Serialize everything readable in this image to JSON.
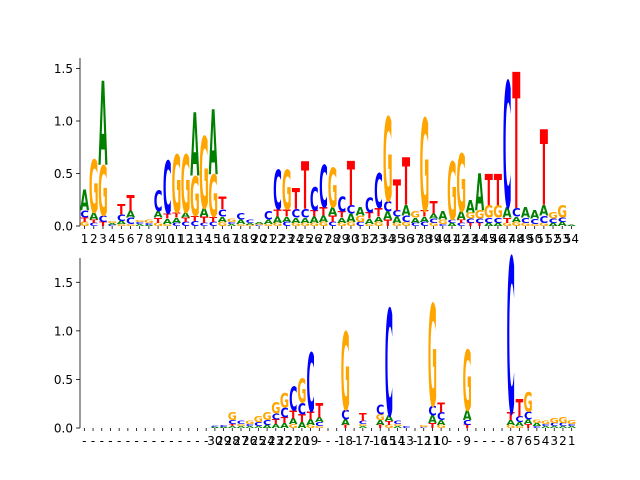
{
  "figure_title": "",
  "colors": {
    "A": "#008000",
    "C": "#0000ff",
    "G": "#ffa500",
    "T": "#ff0000"
  },
  "chart_data": [
    {
      "type": "sequence_logo",
      "name": "top-logo",
      "title": "",
      "xlabel": "",
      "ylabel": "",
      "ylim": [
        0,
        1.6
      ],
      "yticks": [
        0.0,
        0.5,
        1.0,
        1.5
      ],
      "ytick_labels": [
        "0.0",
        "0.5",
        "1.0",
        "1.5"
      ],
      "positions": [
        "1",
        "2",
        "3",
        "4",
        "5",
        "6",
        "7",
        "8",
        "9",
        "10",
        "11",
        "12",
        "13",
        "14",
        "15",
        "16",
        "17",
        "18",
        "19",
        "20",
        "21",
        "22",
        "23",
        "24",
        "25",
        "26",
        "27",
        "28",
        "29",
        "30",
        "31",
        "32",
        "33",
        "34",
        "35",
        "36",
        "37",
        "38",
        "39",
        "40",
        "41",
        "42",
        "43",
        "44",
        "45",
        "46",
        "47",
        "48",
        "49",
        "50",
        "51",
        "52",
        "53",
        "54"
      ],
      "columns": [
        {
          "A": 0.2,
          "C": 0.07,
          "G": 0.04,
          "T": 0.04
        },
        {
          "G": 0.5,
          "A": 0.07,
          "C": 0.03,
          "T": 0.03
        },
        {
          "A": 0.8,
          "G": 0.48,
          "T": 0.04,
          "C": 0.06
        },
        {
          "G": 0.02,
          "A": 0.02,
          "C": 0.01
        },
        {
          "T": 0.1,
          "C": 0.06,
          "A": 0.03,
          "G": 0.02
        },
        {
          "T": 0.15,
          "C": 0.06,
          "A": 0.07,
          "G": 0.02
        },
        {
          "A": 0.02,
          "C": 0.02,
          "G": 0.02
        },
        {
          "G": 0.03,
          "C": 0.02,
          "A": 0.01
        },
        {
          "C": 0.2,
          "A": 0.06,
          "T": 0.05,
          "G": 0.03
        },
        {
          "C": 0.5,
          "T": 0.05,
          "A": 0.05,
          "G": 0.02
        },
        {
          "G": 0.55,
          "T": 0.05,
          "A": 0.05,
          "C": 0.03
        },
        {
          "G": 0.55,
          "A": 0.05,
          "T": 0.04,
          "C": 0.04
        },
        {
          "A": 0.6,
          "G": 0.38,
          "T": 0.05,
          "C": 0.05
        },
        {
          "G": 0.68,
          "A": 0.08,
          "T": 0.06,
          "C": 0.03
        },
        {
          "A": 0.62,
          "G": 0.4,
          "T": 0.05,
          "C": 0.04
        },
        {
          "T": 0.12,
          "C": 0.07,
          "A": 0.05,
          "G": 0.04
        },
        {
          "G": 0.03,
          "A": 0.02,
          "C": 0.02
        },
        {
          "C": 0.06,
          "A": 0.04,
          "G": 0.02
        },
        {
          "C": 0.03,
          "A": 0.02,
          "G": 0.01
        },
        {
          "A": 0.02,
          "G": 0.01,
          "C": 0.01
        },
        {
          "C": 0.08,
          "A": 0.04,
          "G": 0.02
        },
        {
          "C": 0.38,
          "T": 0.07,
          "A": 0.06,
          "G": 0.03
        },
        {
          "G": 0.38,
          "T": 0.07,
          "A": 0.05,
          "C": 0.04
        },
        {
          "T": 0.2,
          "C": 0.08,
          "A": 0.05,
          "G": 0.03
        },
        {
          "T": 0.45,
          "C": 0.08,
          "A": 0.05,
          "G": 0.03
        },
        {
          "C": 0.22,
          "A": 0.06,
          "T": 0.06,
          "G": 0.03
        },
        {
          "C": 0.4,
          "T": 0.08,
          "A": 0.06,
          "G": 0.04
        },
        {
          "G": 0.38,
          "A": 0.08,
          "T": 0.06,
          "C": 0.04
        },
        {
          "C": 0.14,
          "T": 0.06,
          "A": 0.05,
          "G": 0.03
        },
        {
          "T": 0.42,
          "A": 0.08,
          "C": 0.08,
          "G": 0.04
        },
        {
          "A": 0.08,
          "G": 0.06,
          "C": 0.04
        },
        {
          "C": 0.14,
          "T": 0.06,
          "A": 0.05,
          "G": 0.02
        },
        {
          "C": 0.33,
          "T": 0.08,
          "A": 0.05,
          "G": 0.04
        },
        {
          "G": 0.8,
          "C": 0.1,
          "A": 0.08,
          "T": 0.06
        },
        {
          "T": 0.3,
          "C": 0.06,
          "A": 0.06,
          "G": 0.03
        },
        {
          "T": 0.45,
          "A": 0.1,
          "C": 0.06,
          "G": 0.04
        },
        {
          "G": 0.06,
          "A": 0.05,
          "C": 0.03
        },
        {
          "G": 0.88,
          "T": 0.06,
          "A": 0.05,
          "C": 0.04
        },
        {
          "T": 0.12,
          "A": 0.05,
          "C": 0.04,
          "G": 0.03
        },
        {
          "A": 0.08,
          "G": 0.04,
          "C": 0.02
        },
        {
          "G": 0.55,
          "A": 0.03,
          "C": 0.03
        },
        {
          "G": 0.55,
          "A": 0.08,
          "T": 0.03,
          "C": 0.03
        },
        {
          "A": 0.12,
          "G": 0.06,
          "C": 0.04,
          "T": 0.03
        },
        {
          "A": 0.35,
          "G": 0.08,
          "C": 0.04,
          "T": 0.03
        },
        {
          "T": 0.3,
          "G": 0.12,
          "C": 0.05,
          "A": 0.03
        },
        {
          "T": 0.3,
          "G": 0.12,
          "C": 0.05,
          "A": 0.03
        },
        {
          "C": 1.2,
          "A": 0.1,
          "T": 0.05,
          "G": 0.03
        },
        {
          "T": 1.3,
          "C": 0.08,
          "A": 0.05,
          "G": 0.04
        },
        {
          "A": 0.1,
          "C": 0.05,
          "G": 0.03
        },
        {
          "A": 0.08,
          "C": 0.05,
          "G": 0.02
        },
        {
          "T": 0.72,
          "A": 0.1,
          "C": 0.07,
          "G": 0.03
        },
        {
          "G": 0.06,
          "C": 0.04,
          "A": 0.03
        },
        {
          "G": 0.12,
          "C": 0.04,
          "A": 0.04
        },
        {
          "A": 0.01
        }
      ]
    },
    {
      "type": "sequence_logo",
      "name": "bottom-logo",
      "title": "",
      "xlabel": "",
      "ylabel": "",
      "ylim": [
        0,
        1.75
      ],
      "yticks": [
        0.0,
        0.5,
        1.0,
        1.5
      ],
      "ytick_labels": [
        "0.0",
        "0.5",
        "1.0",
        "1.5"
      ],
      "positions": [
        "-",
        "-",
        "-",
        "-",
        "-",
        "-",
        "-",
        "-",
        "-",
        "-",
        "-",
        "-",
        "-",
        "-",
        "-",
        "30",
        "29",
        "28",
        "27",
        "26",
        "25",
        "24",
        "23",
        "22",
        "21",
        "20",
        "19",
        "-",
        "-",
        "-",
        "18",
        "-",
        "17",
        "-",
        "16",
        "15",
        "14",
        "13",
        "-",
        "12",
        "11",
        "10",
        "-",
        "-",
        "9",
        "-",
        "-",
        "-",
        "-",
        "8",
        "7",
        "6",
        "5",
        "4",
        "3",
        "2",
        "1"
      ],
      "columns": [
        {},
        {},
        {},
        {},
        {},
        {},
        {},
        {},
        {},
        {},
        {},
        {},
        {},
        {},
        {},
        {
          "C": 0.01,
          "A": 0.01
        },
        {
          "C": 0.02,
          "A": 0.01
        },
        {
          "G": 0.08,
          "C": 0.04,
          "A": 0.02,
          "T": 0.02
        },
        {
          "C": 0.03,
          "A": 0.02,
          "G": 0.02
        },
        {
          "G": 0.03,
          "C": 0.02,
          "A": 0.02
        },
        {
          "G": 0.06,
          "C": 0.04,
          "A": 0.02
        },
        {
          "G": 0.08,
          "C": 0.05,
          "A": 0.03
        },
        {
          "G": 0.12,
          "C": 0.06,
          "T": 0.05,
          "A": 0.04
        },
        {
          "G": 0.15,
          "C": 0.1,
          "T": 0.06,
          "A": 0.05
        },
        {
          "C": 0.25,
          "T": 0.08,
          "A": 0.06,
          "G": 0.04
        },
        {
          "G": 0.25,
          "C": 0.12,
          "T": 0.08,
          "A": 0.06
        },
        {
          "C": 0.6,
          "T": 0.08,
          "A": 0.06,
          "G": 0.03
        },
        {
          "T": 0.15,
          "A": 0.05,
          "C": 0.04,
          "G": 0.02
        },
        {},
        {},
        {
          "G": 0.8,
          "C": 0.1,
          "A": 0.06,
          "T": 0.03
        },
        {},
        {
          "T": 0.08,
          "C": 0.03,
          "G": 0.02,
          "A": 0.02
        },
        {},
        {
          "C": 0.1,
          "G": 0.06,
          "A": 0.05,
          "T": 0.03
        },
        {
          "C": 1.1,
          "A": 0.06,
          "T": 0.04,
          "G": 0.03
        },
        {
          "C": 0.03,
          "G": 0.02,
          "A": 0.02
        },
        {
          "C": 0.02
        },
        {},
        {
          "G": 0.02,
          "C": 0.01
        },
        {
          "G": 1.05,
          "C": 0.1,
          "A": 0.08,
          "T": 0.05
        },
        {
          "T": 0.1,
          "C": 0.08,
          "A": 0.05,
          "G": 0.03
        },
        {},
        {},
        {
          "G": 0.62,
          "A": 0.1,
          "C": 0.05,
          "T": 0.03
        },
        {},
        {},
        {},
        {},
        {
          "C": 1.6,
          "T": 0.08,
          "A": 0.05,
          "G": 0.03
        },
        {
          "T": 0.18,
          "C": 0.06,
          "A": 0.04,
          "G": 0.02
        },
        {
          "G": 0.2,
          "C": 0.08,
          "A": 0.05,
          "T": 0.04
        },
        {
          "G": 0.03,
          "A": 0.03,
          "C": 0.02
        },
        {
          "G": 0.03,
          "A": 0.02,
          "C": 0.02
        },
        {
          "G": 0.05,
          "C": 0.03,
          "A": 0.02
        },
        {
          "G": 0.06,
          "C": 0.03,
          "A": 0.02
        },
        {
          "G": 0.04,
          "C": 0.02,
          "A": 0.02
        }
      ]
    }
  ]
}
